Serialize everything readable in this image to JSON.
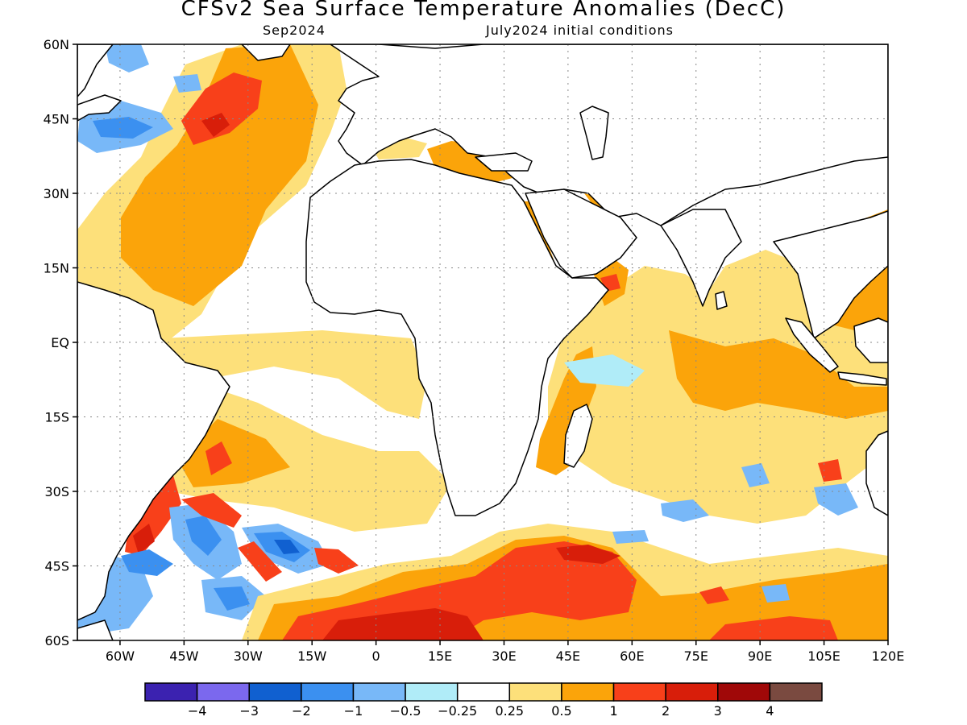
{
  "title": "CFSv2 Sea Surface Temperature Anomalies (DecC)",
  "subtitle_left": "Sep2024",
  "subtitle_right": "July2024 initial conditions",
  "map": {
    "lon_range": [
      -70,
      120
    ],
    "lat_range": [
      -60,
      60
    ],
    "lat_ticks": [
      {
        "value": 60,
        "label": "60N"
      },
      {
        "value": 45,
        "label": "45N"
      },
      {
        "value": 30,
        "label": "30N"
      },
      {
        "value": 15,
        "label": "15N"
      },
      {
        "value": 0,
        "label": "EQ"
      },
      {
        "value": -15,
        "label": "15S"
      },
      {
        "value": -30,
        "label": "30S"
      },
      {
        "value": -45,
        "label": "45S"
      },
      {
        "value": -60,
        "label": "60S"
      }
    ],
    "lon_ticks": [
      {
        "value": -60,
        "label": "60W"
      },
      {
        "value": -45,
        "label": "45W"
      },
      {
        "value": -30,
        "label": "30W"
      },
      {
        "value": -15,
        "label": "15W"
      },
      {
        "value": 0,
        "label": "0"
      },
      {
        "value": 15,
        "label": "15E"
      },
      {
        "value": 30,
        "label": "30E"
      },
      {
        "value": 45,
        "label": "45E"
      },
      {
        "value": 60,
        "label": "60E"
      },
      {
        "value": 75,
        "label": "75E"
      },
      {
        "value": 90,
        "label": "90E"
      },
      {
        "value": 105,
        "label": "105E"
      },
      {
        "value": 120,
        "label": "120E"
      }
    ]
  },
  "colorbar": {
    "colors": [
      "#3b22b0",
      "#7b68ee",
      "#1060d0",
      "#3b90f0",
      "#78b8f8",
      "#b0ecf8",
      "#ffffff",
      "#fde07a",
      "#fba40a",
      "#f8401a",
      "#d81e0a",
      "#a00808",
      "#7a4a40"
    ],
    "labels": [
      "−4",
      "−3",
      "−2",
      "−1",
      "−0.5",
      "−0.25",
      "0.25",
      "0.5",
      "1",
      "2",
      "3",
      "4"
    ]
  },
  "anomaly_colors": {
    "mod_warm": "#fde07a",
    "warm": "#fba40a",
    "hot": "#f8401a",
    "very_hot": "#d81e0a",
    "extreme": "#a00808",
    "cool": "#b0ecf8",
    "cold": "#78b8f8",
    "colder": "#3b90f0",
    "coldest": "#1060d0"
  }
}
